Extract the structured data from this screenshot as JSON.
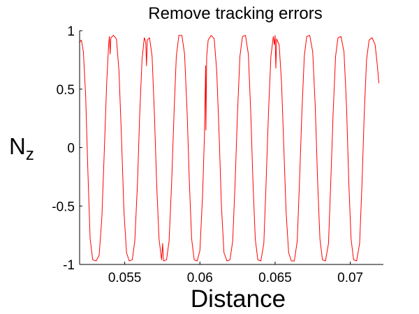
{
  "chart_data": {
    "type": "line",
    "title": "Remove tracking errors",
    "xlabel": "Distance",
    "ylabel": {
      "main": "N",
      "subscript": "z"
    },
    "xlim": [
      0.052,
      0.0722
    ],
    "ylim": [
      -1,
      1
    ],
    "grid": false,
    "legend": "none",
    "x_ticks": [
      {
        "value": 0.055,
        "label": "0.055"
      },
      {
        "value": 0.06,
        "label": "0.06"
      },
      {
        "value": 0.065,
        "label": "0.065"
      },
      {
        "value": 0.07,
        "label": "0.07"
      }
    ],
    "y_ticks": [
      {
        "value": 1,
        "label": "1"
      },
      {
        "value": 0.5,
        "label": "0.5"
      },
      {
        "value": 0,
        "label": "0"
      },
      {
        "value": -0.5,
        "label": "-0.5"
      },
      {
        "value": -1,
        "label": "-1"
      }
    ],
    "series": [
      {
        "color": "#ff0000",
        "points": [
          [
            0.052,
            0.9
          ],
          [
            0.05212,
            0.92
          ],
          [
            0.05225,
            0.82
          ],
          [
            0.0524,
            0.45
          ],
          [
            0.05255,
            -0.2
          ],
          [
            0.0527,
            -0.78
          ],
          [
            0.05287,
            -0.96
          ],
          [
            0.0531,
            -0.97
          ],
          [
            0.0533,
            -0.92
          ],
          [
            0.05348,
            -0.6
          ],
          [
            0.05365,
            0.0
          ],
          [
            0.0538,
            0.55
          ],
          [
            0.05393,
            0.88
          ],
          [
            0.05398,
            0.95
          ],
          [
            0.05403,
            0.8
          ],
          [
            0.05408,
            0.94
          ],
          [
            0.05425,
            0.96
          ],
          [
            0.05445,
            0.93
          ],
          [
            0.05462,
            0.65
          ],
          [
            0.05478,
            0.1
          ],
          [
            0.05495,
            -0.55
          ],
          [
            0.05512,
            -0.9
          ],
          [
            0.0553,
            -0.97
          ],
          [
            0.0555,
            -0.96
          ],
          [
            0.05567,
            -0.8
          ],
          [
            0.05585,
            -0.3
          ],
          [
            0.056,
            0.3
          ],
          [
            0.05615,
            0.75
          ],
          [
            0.0563,
            0.94
          ],
          [
            0.0564,
            0.9
          ],
          [
            0.05645,
            0.7
          ],
          [
            0.0565,
            0.92
          ],
          [
            0.05665,
            0.94
          ],
          [
            0.05682,
            0.78
          ],
          [
            0.05697,
            0.3
          ],
          [
            0.05712,
            -0.3
          ],
          [
            0.05728,
            -0.78
          ],
          [
            0.05745,
            -0.96
          ],
          [
            0.05752,
            -0.82
          ],
          [
            0.05758,
            -0.97
          ],
          [
            0.05778,
            -0.96
          ],
          [
            0.05795,
            -0.8
          ],
          [
            0.05812,
            -0.3
          ],
          [
            0.05828,
            0.3
          ],
          [
            0.05843,
            0.78
          ],
          [
            0.0586,
            0.96
          ],
          [
            0.0588,
            0.96
          ],
          [
            0.05898,
            0.8
          ],
          [
            0.05915,
            0.3
          ],
          [
            0.0593,
            -0.3
          ],
          [
            0.05945,
            -0.78
          ],
          [
            0.05962,
            -0.96
          ],
          [
            0.05982,
            -0.97
          ],
          [
            0.06,
            -0.88
          ],
          [
            0.06018,
            -0.4
          ],
          [
            0.0603,
            0.1
          ],
          [
            0.06038,
            0.7
          ],
          [
            0.0604,
            0.15
          ],
          [
            0.06045,
            0.78
          ],
          [
            0.06055,
            0.92
          ],
          [
            0.06075,
            0.96
          ],
          [
            0.06095,
            0.93
          ],
          [
            0.06112,
            0.65
          ],
          [
            0.06128,
            0.1
          ],
          [
            0.06143,
            -0.5
          ],
          [
            0.0616,
            -0.9
          ],
          [
            0.0618,
            -0.97
          ],
          [
            0.062,
            -0.96
          ],
          [
            0.06218,
            -0.8
          ],
          [
            0.06234,
            -0.3
          ],
          [
            0.0625,
            0.3
          ],
          [
            0.06266,
            0.78
          ],
          [
            0.06283,
            0.95
          ],
          [
            0.06303,
            0.96
          ],
          [
            0.06322,
            0.8
          ],
          [
            0.06338,
            0.3
          ],
          [
            0.06353,
            -0.3
          ],
          [
            0.06368,
            -0.78
          ],
          [
            0.06385,
            -0.96
          ],
          [
            0.06405,
            -0.97
          ],
          [
            0.06425,
            -0.82
          ],
          [
            0.0644,
            -0.3
          ],
          [
            0.06456,
            0.3
          ],
          [
            0.06472,
            0.78
          ],
          [
            0.06488,
            0.95
          ],
          [
            0.06495,
            0.88
          ],
          [
            0.065,
            0.96
          ],
          [
            0.06505,
            0.68
          ],
          [
            0.0651,
            0.93
          ],
          [
            0.06527,
            0.88
          ],
          [
            0.06543,
            0.55
          ],
          [
            0.06558,
            0.0
          ],
          [
            0.06573,
            -0.55
          ],
          [
            0.0659,
            -0.9
          ],
          [
            0.06608,
            -0.97
          ],
          [
            0.06628,
            -0.97
          ],
          [
            0.06647,
            -0.8
          ],
          [
            0.06662,
            -0.3
          ],
          [
            0.06678,
            0.3
          ],
          [
            0.06694,
            0.78
          ],
          [
            0.0671,
            0.95
          ],
          [
            0.0673,
            0.96
          ],
          [
            0.0675,
            0.82
          ],
          [
            0.06767,
            0.35
          ],
          [
            0.06783,
            -0.3
          ],
          [
            0.06798,
            -0.78
          ],
          [
            0.06815,
            -0.96
          ],
          [
            0.06835,
            -0.97
          ],
          [
            0.06855,
            -0.82
          ],
          [
            0.0687,
            -0.3
          ],
          [
            0.06886,
            0.3
          ],
          [
            0.06902,
            0.78
          ],
          [
            0.06918,
            0.94
          ],
          [
            0.06938,
            0.95
          ],
          [
            0.06958,
            0.82
          ],
          [
            0.06975,
            0.35
          ],
          [
            0.0699,
            -0.3
          ],
          [
            0.07005,
            -0.78
          ],
          [
            0.07022,
            -0.96
          ],
          [
            0.07042,
            -0.97
          ],
          [
            0.07062,
            -0.82
          ],
          [
            0.07078,
            -0.3
          ],
          [
            0.07093,
            0.3
          ],
          [
            0.07108,
            0.75
          ],
          [
            0.07125,
            0.92
          ],
          [
            0.07145,
            0.94
          ],
          [
            0.07165,
            0.88
          ],
          [
            0.0718,
            0.7
          ],
          [
            0.0719,
            0.55
          ]
        ]
      }
    ]
  }
}
